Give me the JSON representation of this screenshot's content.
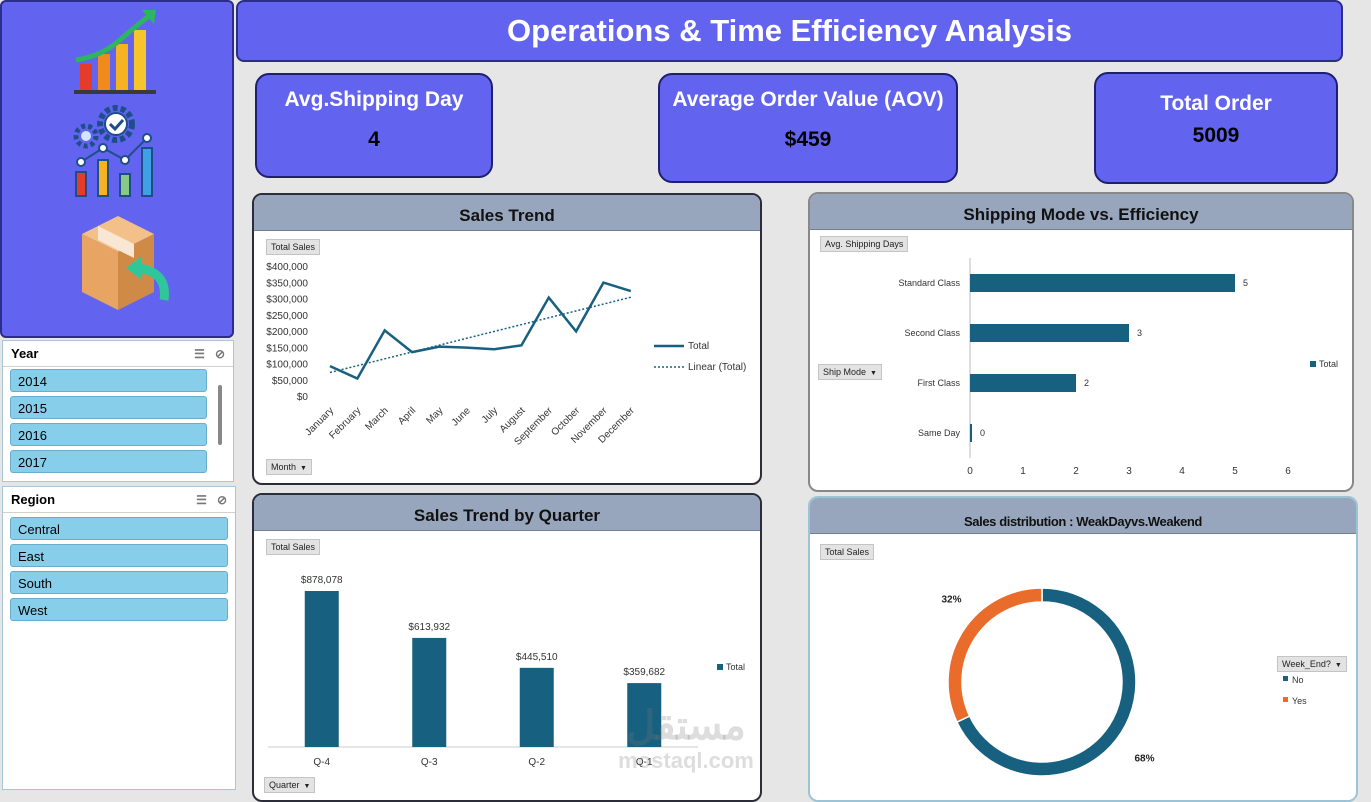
{
  "header": {
    "title": "Operations & Time Efficiency Analysis"
  },
  "kpis": {
    "shipping": {
      "title": "Avg.Shipping Day",
      "value": "4"
    },
    "aov": {
      "title": "Average Order Value (AOV)",
      "value": "$459"
    },
    "orders": {
      "title": "Total Order",
      "value": "5009"
    }
  },
  "sidebar": {
    "icons": [
      "growth-chart-icon",
      "gears-analytics-icon",
      "box-return-icon"
    ],
    "year_slicer": {
      "title": "Year",
      "items": [
        "2014",
        "2015",
        "2016",
        "2017"
      ]
    },
    "region_slicer": {
      "title": "Region",
      "items": [
        "Central",
        "East",
        "South",
        "West"
      ]
    }
  },
  "sales_trend": {
    "title": "Sales Trend",
    "field": "Total Sales",
    "axis_button": "Month",
    "legend": [
      "Total",
      "Linear (Total)"
    ]
  },
  "shipping_mode": {
    "title": "Shipping Mode vs. Efficiency",
    "field": "Avg. Shipping Days",
    "axis_button": "Ship Mode",
    "legend": [
      "Total"
    ]
  },
  "quarter": {
    "title": "Sales Trend by Quarter",
    "field": "Total Sales",
    "axis_button": "Quarter",
    "legend": [
      "Total"
    ]
  },
  "weekend": {
    "title": "Sales distribution : WeakDayvs.Weakend",
    "field": "Total Sales",
    "legend_button": "Week_End?",
    "legend": [
      "No",
      "Yes"
    ]
  },
  "watermark": {
    "arabic": "مستقل",
    "latin": "mostaql.com"
  },
  "colors": {
    "primary": "#6264ef",
    "series": "#18607f",
    "orange": "#ea6c2b",
    "panel_head": "#97a6bd",
    "slicer_item": "#87ceeb"
  },
  "chart_data": [
    {
      "type": "line",
      "x": [
        "January",
        "February",
        "March",
        "April",
        "May",
        "June",
        "July",
        "August",
        "September",
        "October",
        "November",
        "December"
      ],
      "series": [
        {
          "name": "Total",
          "values": [
            95000,
            57000,
            205000,
            138000,
            155000,
            152000,
            147000,
            159000,
            306000,
            202000,
            352000,
            326000
          ]
        }
      ],
      "trendline": {
        "name": "Linear (Total)",
        "type": "linear"
      },
      "ylim": [
        0,
        400000
      ],
      "yticks": [
        "$0",
        "$50,000",
        "$100,000",
        "$150,000",
        "$200,000",
        "$250,000",
        "$300,000",
        "$350,000",
        "$400,000"
      ],
      "legend": "right"
    },
    {
      "type": "bar",
      "orientation": "horizontal",
      "categories": [
        "Standard Class",
        "Second Class",
        "First Class",
        "Same Day"
      ],
      "series": [
        {
          "name": "Total",
          "values": [
            5,
            3,
            2,
            0
          ]
        }
      ],
      "xlim": [
        0,
        6
      ],
      "xticks": [
        "0",
        "1",
        "2",
        "3",
        "4",
        "5",
        "6"
      ],
      "legend": "right"
    },
    {
      "type": "bar",
      "categories": [
        "Q-4",
        "Q-3",
        "Q-2",
        "Q-1"
      ],
      "series": [
        {
          "name": "Total",
          "values": [
            878078,
            613932,
            445510,
            359682
          ]
        }
      ],
      "data_labels": [
        "$878,078",
        "$613,932",
        "$445,510",
        "$359,682"
      ],
      "legend": "right"
    },
    {
      "type": "pie",
      "donut": true,
      "categories": [
        "No",
        "Yes"
      ],
      "values": [
        68,
        32
      ],
      "labels": [
        "68%",
        "32%"
      ],
      "legend": "right"
    }
  ]
}
